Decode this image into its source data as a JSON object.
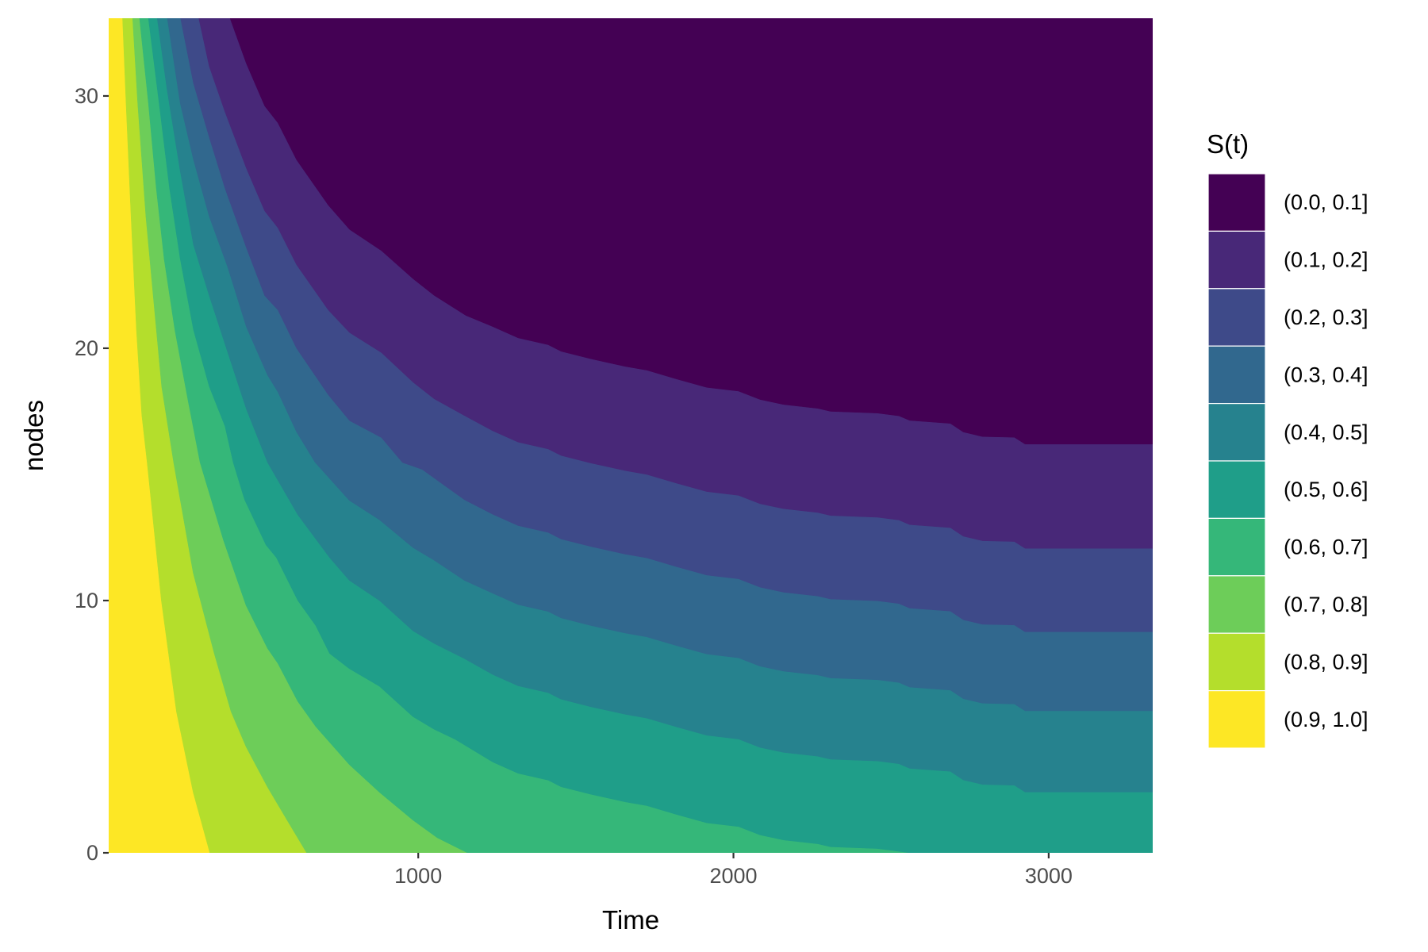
{
  "chart_data": {
    "type": "heatmap",
    "subtype": "filled contour",
    "xlabel": "Time",
    "ylabel": "nodes",
    "xlim": [
      18,
      3330
    ],
    "ylim": [
      0,
      33.08
    ],
    "x_ticks": [
      1000,
      2000,
      3000
    ],
    "x_tick_labels": [
      "1000",
      "2000",
      "3000"
    ],
    "y_ticks": [
      0,
      10,
      20,
      30
    ],
    "y_tick_labels": [
      "0",
      "10",
      "20",
      "30"
    ],
    "grid": false,
    "legend": {
      "title": "S(t)",
      "position": "right",
      "items": [
        {
          "label": "(0.0, 0.1]",
          "color": "#440154"
        },
        {
          "label": "(0.1, 0.2]",
          "color": "#482878"
        },
        {
          "label": "(0.2, 0.3]",
          "color": "#3E4A89"
        },
        {
          "label": "(0.3, 0.4]",
          "color": "#31688E"
        },
        {
          "label": "(0.4, 0.5]",
          "color": "#26828E"
        },
        {
          "label": "(0.5, 0.6]",
          "color": "#1F9E89"
        },
        {
          "label": "(0.6, 0.7]",
          "color": "#35B779"
        },
        {
          "label": "(0.7, 0.8]",
          "color": "#6DCD59"
        },
        {
          "label": "(0.8, 0.9]",
          "color": "#B4DE2C"
        },
        {
          "label": "(0.9, 1.0]",
          "color": "#FDE725"
        }
      ]
    },
    "boundaries": [
      {
        "level": 0.9,
        "points": [
          [
            62,
            33.08
          ],
          [
            73,
            29.71
          ],
          [
            89,
            25.22
          ],
          [
            106,
            20.73
          ],
          [
            123,
            17.36
          ],
          [
            140,
            15.47
          ],
          [
            185,
            10.0
          ],
          [
            233,
            5.6
          ],
          [
            286,
            2.4
          ],
          [
            339,
            0
          ]
        ]
      },
      {
        "level": 0.8,
        "points": [
          [
            94,
            33.08
          ],
          [
            110,
            29.71
          ],
          [
            136,
            25.22
          ],
          [
            161,
            21.85
          ],
          [
            186,
            18.48
          ],
          [
            224,
            15.47
          ],
          [
            286,
            11.1
          ],
          [
            353,
            7.9
          ],
          [
            406,
            5.6
          ],
          [
            454,
            4.2
          ],
          [
            522,
            2.6
          ],
          [
            579,
            1.4
          ],
          [
            646,
            0
          ]
        ]
      },
      {
        "level": 0.7,
        "points": [
          [
            116,
            33.08
          ],
          [
            144,
            29.71
          ],
          [
            169,
            26.34
          ],
          [
            194,
            23.54
          ],
          [
            228,
            20.73
          ],
          [
            270,
            17.92
          ],
          [
            308,
            15.47
          ],
          [
            382,
            12.4
          ],
          [
            454,
            9.8
          ],
          [
            522,
            8.1
          ],
          [
            555,
            7.5
          ],
          [
            618,
            6.0
          ],
          [
            675,
            5.0
          ],
          [
            781,
            3.5
          ],
          [
            877,
            2.4
          ],
          [
            983,
            1.3
          ],
          [
            1060,
            0.6
          ],
          [
            1156,
            0
          ]
        ]
      },
      {
        "level": 0.6,
        "points": [
          [
            144,
            33.08
          ],
          [
            178,
            29.71
          ],
          [
            211,
            26.34
          ],
          [
            245,
            23.54
          ],
          [
            287,
            20.73
          ],
          [
            337,
            18.48
          ],
          [
            387,
            16.91
          ],
          [
            413,
            15.47
          ],
          [
            449,
            14.0
          ],
          [
            517,
            12.2
          ],
          [
            550,
            11.7
          ],
          [
            618,
            10.0
          ],
          [
            675,
            9.0
          ],
          [
            719,
            7.9
          ],
          [
            781,
            7.3
          ],
          [
            877,
            6.6
          ],
          [
            983,
            5.4
          ],
          [
            1050,
            4.9
          ],
          [
            1117,
            4.5
          ],
          [
            1236,
            3.6
          ],
          [
            1317,
            3.15
          ],
          [
            1412,
            2.88
          ],
          [
            1453,
            2.62
          ],
          [
            1548,
            2.32
          ],
          [
            1657,
            2.02
          ],
          [
            1725,
            1.87
          ],
          [
            1820,
            1.52
          ],
          [
            1915,
            1.19
          ],
          [
            2016,
            1.04
          ],
          [
            2084,
            0.71
          ],
          [
            2159,
            0.51
          ],
          [
            2267,
            0.36
          ],
          [
            2308,
            0.24
          ],
          [
            2457,
            0.17
          ],
          [
            2525,
            0.06
          ],
          [
            2559,
            0
          ]
        ]
      },
      {
        "level": 0.5,
        "points": [
          [
            172,
            33.08
          ],
          [
            203,
            30.27
          ],
          [
            245,
            27.02
          ],
          [
            287,
            24.1
          ],
          [
            337,
            22.08
          ],
          [
            387,
            20.17
          ],
          [
            455,
            17.58
          ],
          [
            522,
            15.47
          ],
          [
            618,
            13.4
          ],
          [
            719,
            11.7
          ],
          [
            781,
            10.8
          ],
          [
            877,
            10.0
          ],
          [
            983,
            8.8
          ],
          [
            1050,
            8.3
          ],
          [
            1146,
            7.7
          ],
          [
            1236,
            7.07
          ],
          [
            1317,
            6.62
          ],
          [
            1412,
            6.35
          ],
          [
            1453,
            6.09
          ],
          [
            1548,
            5.79
          ],
          [
            1657,
            5.49
          ],
          [
            1725,
            5.34
          ],
          [
            1820,
            4.99
          ],
          [
            1915,
            4.66
          ],
          [
            2016,
            4.51
          ],
          [
            2084,
            4.18
          ],
          [
            2159,
            3.98
          ],
          [
            2267,
            3.83
          ],
          [
            2308,
            3.71
          ],
          [
            2457,
            3.64
          ],
          [
            2525,
            3.53
          ],
          [
            2559,
            3.35
          ],
          [
            2688,
            3.23
          ],
          [
            2729,
            2.89
          ],
          [
            2790,
            2.71
          ],
          [
            2891,
            2.68
          ],
          [
            2925,
            2.41
          ],
          [
            3330,
            2.41
          ]
        ]
      },
      {
        "level": 0.4,
        "points": [
          [
            204,
            33.08
          ],
          [
            245,
            29.71
          ],
          [
            287,
            27.47
          ],
          [
            337,
            25.22
          ],
          [
            396,
            23.2
          ],
          [
            455,
            20.84
          ],
          [
            522,
            18.93
          ],
          [
            555,
            18.26
          ],
          [
            614,
            16.68
          ],
          [
            673,
            15.47
          ],
          [
            781,
            13.97
          ],
          [
            877,
            13.2
          ],
          [
            983,
            12.1
          ],
          [
            1050,
            11.6
          ],
          [
            1146,
            10.8
          ],
          [
            1236,
            10.29
          ],
          [
            1317,
            9.84
          ],
          [
            1412,
            9.57
          ],
          [
            1453,
            9.31
          ],
          [
            1548,
            9.01
          ],
          [
            1657,
            8.71
          ],
          [
            1725,
            8.56
          ],
          [
            1820,
            8.21
          ],
          [
            1915,
            7.88
          ],
          [
            2016,
            7.73
          ],
          [
            2084,
            7.4
          ],
          [
            2159,
            7.2
          ],
          [
            2267,
            7.05
          ],
          [
            2308,
            6.93
          ],
          [
            2457,
            6.86
          ],
          [
            2525,
            6.75
          ],
          [
            2559,
            6.57
          ],
          [
            2688,
            6.45
          ],
          [
            2729,
            6.11
          ],
          [
            2790,
            5.93
          ],
          [
            2891,
            5.9
          ],
          [
            2925,
            5.63
          ],
          [
            3330,
            5.63
          ]
        ]
      },
      {
        "level": 0.3,
        "points": [
          [
            246,
            33.08
          ],
          [
            287,
            30.5
          ],
          [
            337,
            28.36
          ],
          [
            387,
            26.34
          ],
          [
            455,
            23.98
          ],
          [
            513,
            22.08
          ],
          [
            555,
            21.51
          ],
          [
            614,
            20.0
          ],
          [
            715,
            18.15
          ],
          [
            782,
            17.13
          ],
          [
            883,
            16.46
          ],
          [
            950,
            15.47
          ],
          [
            1012,
            15.2
          ],
          [
            1079,
            14.6
          ],
          [
            1146,
            14.0
          ],
          [
            1236,
            13.42
          ],
          [
            1317,
            12.97
          ],
          [
            1412,
            12.7
          ],
          [
            1453,
            12.44
          ],
          [
            1548,
            12.14
          ],
          [
            1657,
            11.84
          ],
          [
            1725,
            11.69
          ],
          [
            1820,
            11.34
          ],
          [
            1915,
            11.01
          ],
          [
            2016,
            10.86
          ],
          [
            2084,
            10.53
          ],
          [
            2159,
            10.33
          ],
          [
            2267,
            10.18
          ],
          [
            2308,
            10.06
          ],
          [
            2457,
            9.99
          ],
          [
            2525,
            9.88
          ],
          [
            2559,
            9.7
          ],
          [
            2688,
            9.58
          ],
          [
            2729,
            9.24
          ],
          [
            2790,
            9.06
          ],
          [
            2891,
            9.03
          ],
          [
            2925,
            8.76
          ],
          [
            3330,
            8.76
          ]
        ]
      },
      {
        "level": 0.2,
        "points": [
          [
            304,
            33.08
          ],
          [
            337,
            31.17
          ],
          [
            387,
            29.37
          ],
          [
            455,
            27.13
          ],
          [
            513,
            25.44
          ],
          [
            555,
            24.77
          ],
          [
            614,
            23.31
          ],
          [
            715,
            21.51
          ],
          [
            782,
            20.62
          ],
          [
            883,
            19.83
          ],
          [
            984,
            18.65
          ],
          [
            1050,
            18.0
          ],
          [
            1151,
            17.3
          ],
          [
            1236,
            16.73
          ],
          [
            1317,
            16.28
          ],
          [
            1412,
            16.01
          ],
          [
            1453,
            15.75
          ],
          [
            1548,
            15.45
          ],
          [
            1657,
            15.15
          ],
          [
            1725,
            15.0
          ],
          [
            1820,
            14.65
          ],
          [
            1915,
            14.32
          ],
          [
            2016,
            14.17
          ],
          [
            2084,
            13.84
          ],
          [
            2159,
            13.64
          ],
          [
            2267,
            13.49
          ],
          [
            2308,
            13.37
          ],
          [
            2457,
            13.3
          ],
          [
            2525,
            13.19
          ],
          [
            2559,
            13.01
          ],
          [
            2688,
            12.89
          ],
          [
            2729,
            12.55
          ],
          [
            2790,
            12.37
          ],
          [
            2891,
            12.34
          ],
          [
            2925,
            12.07
          ],
          [
            3330,
            12.07
          ]
        ]
      },
      {
        "level": 0.1,
        "points": [
          [
            403,
            33.08
          ],
          [
            455,
            31.28
          ],
          [
            513,
            29.6
          ],
          [
            555,
            28.93
          ],
          [
            614,
            27.47
          ],
          [
            715,
            25.67
          ],
          [
            782,
            24.71
          ],
          [
            883,
            23.87
          ],
          [
            984,
            22.75
          ],
          [
            1050,
            22.1
          ],
          [
            1151,
            21.3
          ],
          [
            1236,
            20.86
          ],
          [
            1317,
            20.41
          ],
          [
            1412,
            20.14
          ],
          [
            1453,
            19.88
          ],
          [
            1548,
            19.58
          ],
          [
            1657,
            19.28
          ],
          [
            1725,
            19.13
          ],
          [
            1820,
            18.78
          ],
          [
            1915,
            18.45
          ],
          [
            2016,
            18.3
          ],
          [
            2084,
            17.97
          ],
          [
            2159,
            17.77
          ],
          [
            2267,
            17.62
          ],
          [
            2308,
            17.5
          ],
          [
            2457,
            17.43
          ],
          [
            2525,
            17.32
          ],
          [
            2559,
            17.14
          ],
          [
            2688,
            17.02
          ],
          [
            2729,
            16.68
          ],
          [
            2790,
            16.5
          ],
          [
            2891,
            16.47
          ],
          [
            2925,
            16.2
          ],
          [
            3330,
            16.2
          ]
        ]
      }
    ]
  }
}
